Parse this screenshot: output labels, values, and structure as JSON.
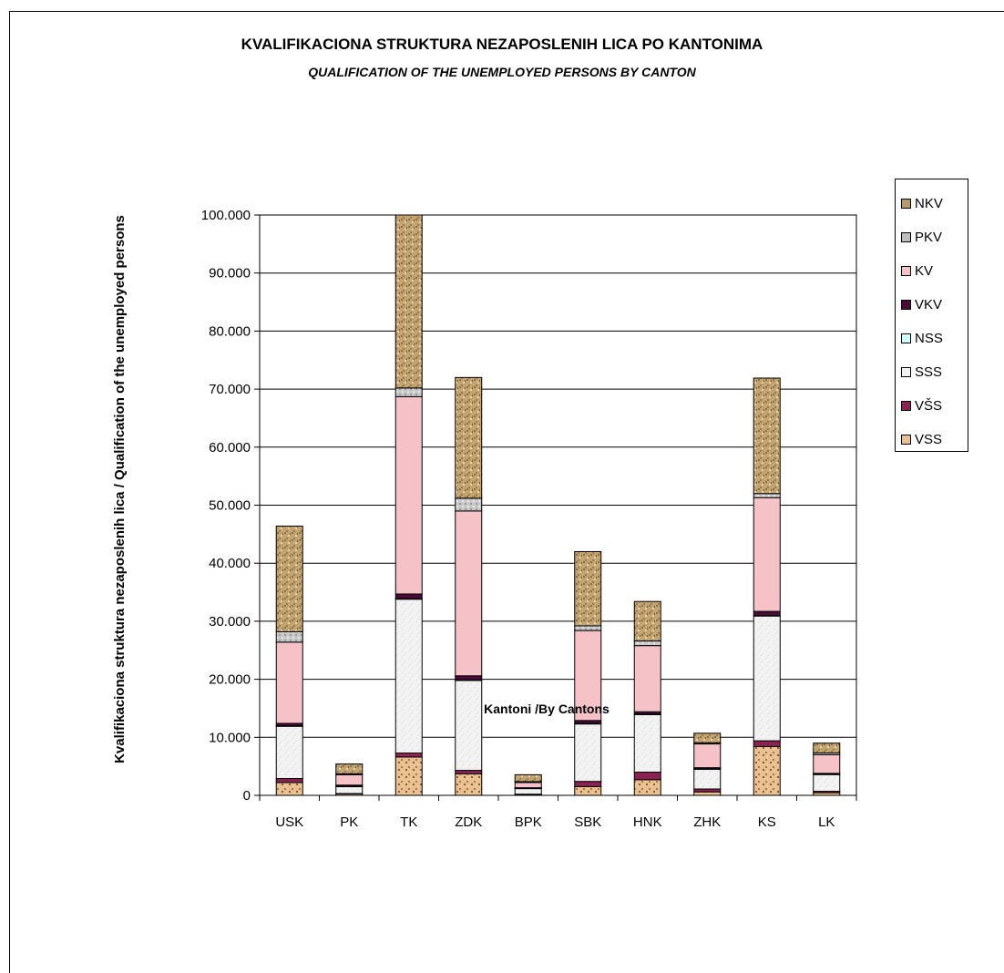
{
  "chart_data": {
    "type": "bar",
    "stacked": true,
    "title": "KVALIFIKACIONA STRUKTURA NEZAPOSLENIH LICA PO KANTONIMA",
    "subtitle": "QUALIFICATION  OF THE UNEMPLOYED PERSONS BY CANTON",
    "xlabel": "Kantoni /By  Cantons",
    "ylabel": "Kvalifikaciona struktura nezaposlenih lica / Qualification of the unemployed persons",
    "ylim": [
      0,
      100000
    ],
    "yticks": [
      0,
      10000,
      20000,
      30000,
      40000,
      50000,
      60000,
      70000,
      80000,
      90000,
      100000
    ],
    "ytick_labels": [
      "0",
      "10.000",
      "20.000",
      "30.000",
      "40.000",
      "50.000",
      "60.000",
      "70.000",
      "80.000",
      "90.000",
      "100.000"
    ],
    "categories": [
      "USK",
      "PK",
      "TK",
      "ZDK",
      "BPK",
      "SBK",
      "HNK",
      "ZHK",
      "KS",
      "LK"
    ],
    "legend_position": "right",
    "legend_order": [
      "NKV",
      "PKV",
      "KV",
      "VKV",
      "NSS",
      "SSS",
      "VŠS",
      "VSS"
    ],
    "series": [
      {
        "name": "VSS",
        "color": "#e9c08f",
        "values": [
          2200,
          250,
          6600,
          3700,
          150,
          1500,
          2700,
          600,
          8400,
          450
        ]
      },
      {
        "name": "VŠS",
        "color": "#8b2252",
        "values": [
          700,
          60,
          700,
          600,
          50,
          900,
          1300,
          500,
          1000,
          250
        ]
      },
      {
        "name": "SSS",
        "color": "#f2f2f2",
        "values": [
          9000,
          1200,
          26500,
          15500,
          1000,
          9900,
          9900,
          3400,
          21500,
          2900
        ]
      },
      {
        "name": "NSS",
        "color": "#ccffff",
        "values": [
          100,
          50,
          100,
          100,
          30,
          100,
          100,
          60,
          100,
          40
        ]
      },
      {
        "name": "VKV",
        "color": "#4b0a3a",
        "values": [
          400,
          200,
          800,
          700,
          80,
          500,
          400,
          200,
          700,
          150
        ]
      },
      {
        "name": "KV",
        "color": "#f4c2c7",
        "values": [
          14000,
          1800,
          34000,
          28400,
          900,
          15500,
          11400,
          4100,
          19600,
          3200
        ]
      },
      {
        "name": "PKV",
        "color": "#bdbdbd",
        "values": [
          1800,
          150,
          1500,
          2200,
          150,
          800,
          800,
          200,
          700,
          300
        ]
      },
      {
        "name": "NKV",
        "color": "#c2a572",
        "values": [
          18200,
          1690,
          29800,
          20800,
          1190,
          12800,
          6800,
          1640,
          19900,
          1710
        ]
      }
    ]
  }
}
